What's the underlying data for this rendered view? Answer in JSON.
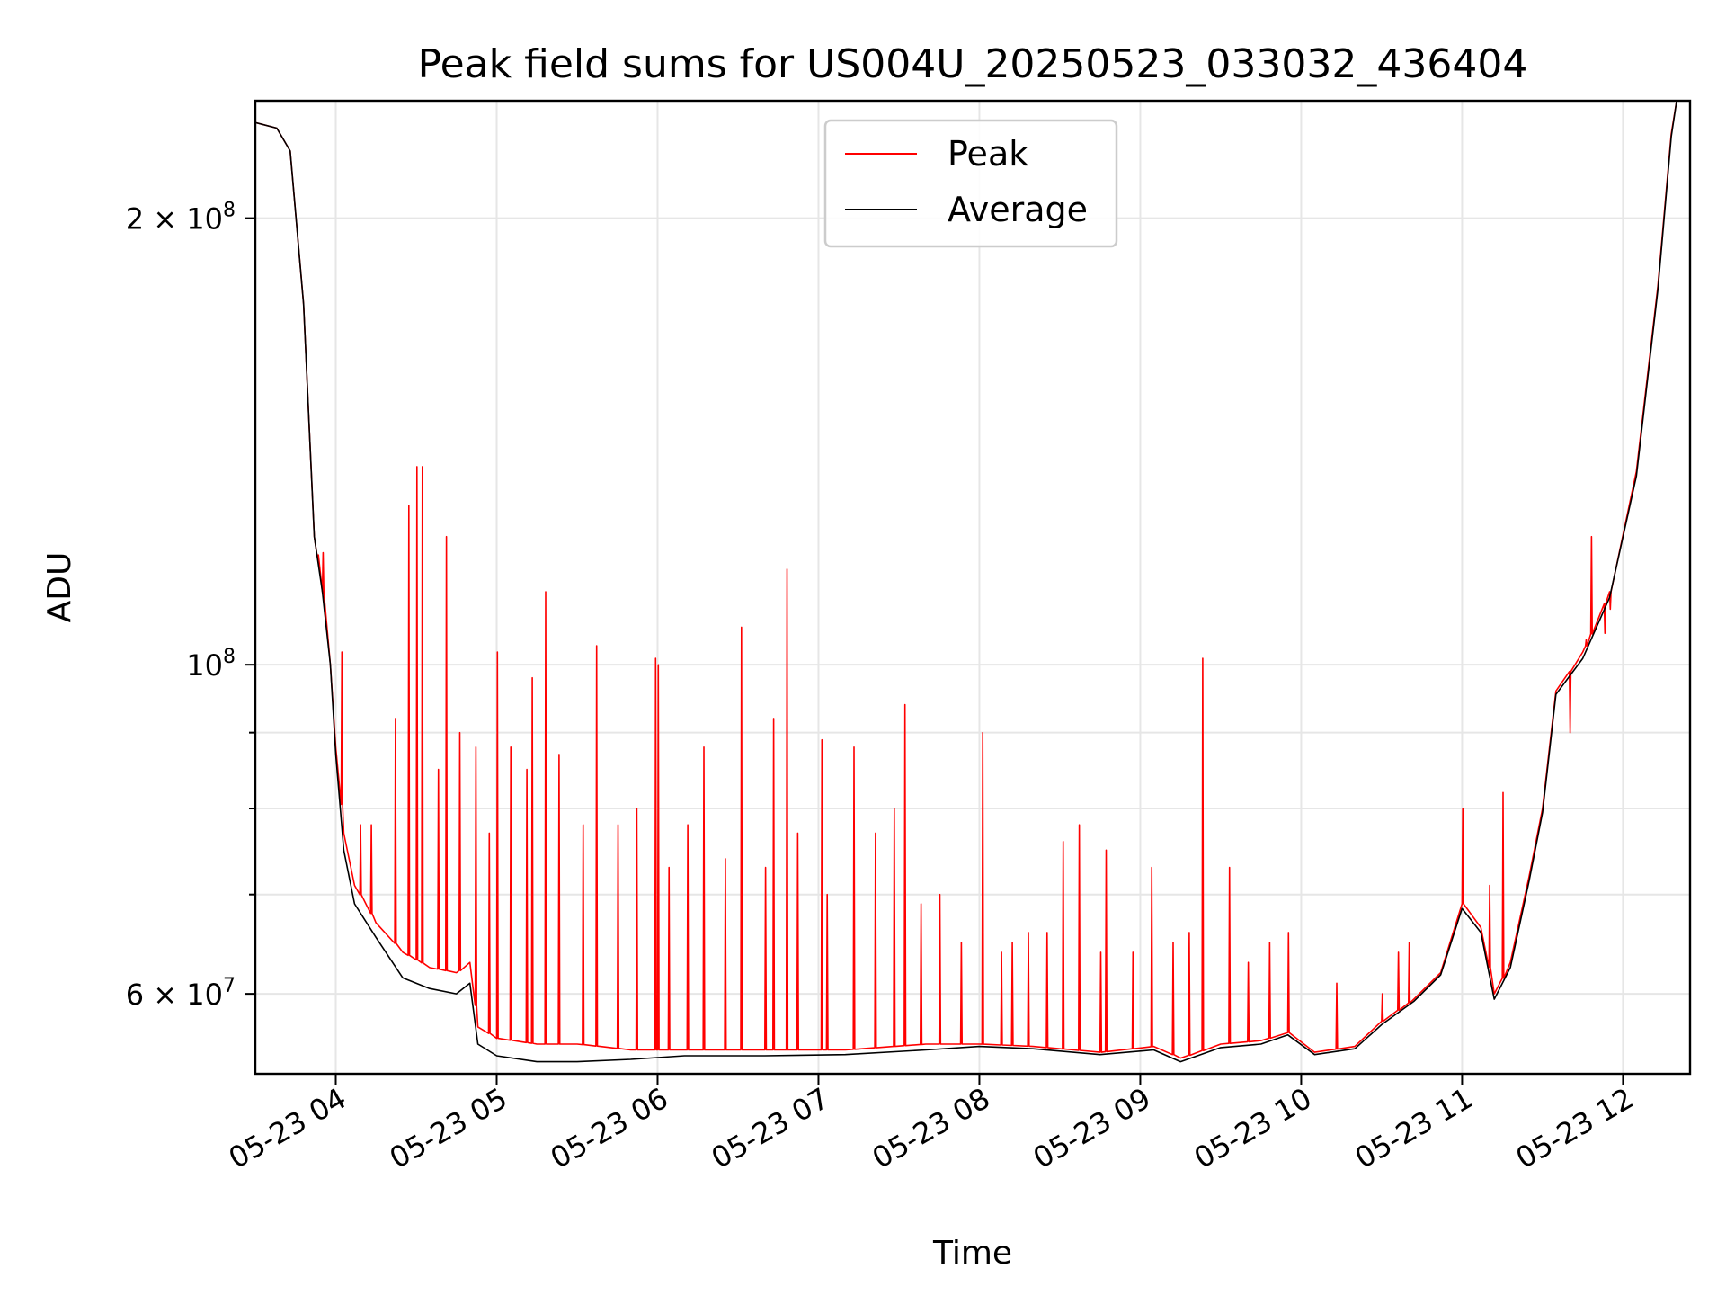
{
  "chart_data": {
    "type": "line",
    "title": "Peak field sums for US004U_20250523_033032_436404",
    "xlabel": "Time",
    "ylabel": "ADU",
    "y_scale": "log",
    "xlim": [
      "2025-05-23 03:30",
      "2025-05-23 12:25"
    ],
    "ylim": [
      53000000,
      240000000
    ],
    "x_ticks": [
      "05-23 04",
      "05-23 05",
      "05-23 06",
      "05-23 07",
      "05-23 08",
      "05-23 09",
      "05-23 10",
      "05-23 11",
      "05-23 12"
    ],
    "y_ticks_major": [
      {
        "value": 60000000,
        "label_base": "6 × 10",
        "label_exp": "7"
      },
      {
        "value": 100000000,
        "label_base": "10",
        "label_exp": "8"
      },
      {
        "value": 200000000,
        "label_base": "2 × 10",
        "label_exp": "8"
      }
    ],
    "y_ticks_minor": [
      70000000,
      80000000,
      90000000
    ],
    "grid": true,
    "legend_position": "top-center",
    "series": [
      {
        "name": "Peak",
        "color": "#ff0000",
        "points": [
          [
            "2025-05-23 03:30",
            232000000
          ],
          [
            "2025-05-23 03:38",
            230000000
          ],
          [
            "2025-05-23 03:43",
            222000000
          ],
          [
            "2025-05-23 03:48",
            175000000
          ],
          [
            "2025-05-23 03:52",
            122000000
          ],
          [
            "2025-05-23 03:55",
            112000000
          ],
          [
            "2025-05-23 03:58",
            100000000
          ],
          [
            "2025-05-23 04:00",
            88000000
          ],
          [
            "2025-05-23 04:03",
            77000000
          ],
          [
            "2025-05-23 04:07",
            71000000
          ],
          [
            "2025-05-23 04:15",
            67000000
          ],
          [
            "2025-05-23 04:25",
            64000000
          ],
          [
            "2025-05-23 04:35",
            62500000
          ],
          [
            "2025-05-23 04:45",
            62000000
          ],
          [
            "2025-05-23 04:50",
            63000000
          ],
          [
            "2025-05-23 04:53",
            57000000
          ],
          [
            "2025-05-23 05:00",
            56000000
          ],
          [
            "2025-05-23 05:15",
            55500000
          ],
          [
            "2025-05-23 05:30",
            55500000
          ],
          [
            "2025-05-23 05:50",
            55000000
          ],
          [
            "2025-05-23 06:10",
            55000000
          ],
          [
            "2025-05-23 06:40",
            55000000
          ],
          [
            "2025-05-23 07:10",
            55000000
          ],
          [
            "2025-05-23 07:40",
            55500000
          ],
          [
            "2025-05-23 08:00",
            55500000
          ],
          [
            "2025-05-23 08:20",
            55300000
          ],
          [
            "2025-05-23 08:45",
            54800000
          ],
          [
            "2025-05-23 09:05",
            55300000
          ],
          [
            "2025-05-23 09:15",
            54300000
          ],
          [
            "2025-05-23 09:30",
            55500000
          ],
          [
            "2025-05-23 09:45",
            55800000
          ],
          [
            "2025-05-23 09:55",
            56500000
          ],
          [
            "2025-05-23 10:05",
            54800000
          ],
          [
            "2025-05-23 10:20",
            55300000
          ],
          [
            "2025-05-23 10:30",
            57500000
          ],
          [
            "2025-05-23 10:42",
            59500000
          ],
          [
            "2025-05-23 10:52",
            62000000
          ],
          [
            "2025-05-23 11:00",
            69000000
          ],
          [
            "2025-05-23 11:07",
            66500000
          ],
          [
            "2025-05-23 11:12",
            60000000
          ],
          [
            "2025-05-23 11:18",
            63000000
          ],
          [
            "2025-05-23 11:25",
            72000000
          ],
          [
            "2025-05-23 11:30",
            80000000
          ],
          [
            "2025-05-23 11:35",
            96000000
          ],
          [
            "2025-05-23 11:45",
            102000000
          ],
          [
            "2025-05-23 11:55",
            112000000
          ],
          [
            "2025-05-23 12:05",
            135000000
          ],
          [
            "2025-05-23 12:13",
            180000000
          ],
          [
            "2025-05-23 12:18",
            228000000
          ],
          [
            "2025-05-23 12:20",
            240000000
          ]
        ],
        "spikes": [
          [
            "2025-05-23 03:53",
            118000000
          ],
          [
            "2025-05-23 03:55",
            119000000
          ],
          [
            "2025-05-23 04:02",
            102000000
          ],
          [
            "2025-05-23 04:09",
            78000000
          ],
          [
            "2025-05-23 04:13",
            78000000
          ],
          [
            "2025-05-23 04:22",
            92000000
          ],
          [
            "2025-05-23 04:27",
            128000000
          ],
          [
            "2025-05-23 04:30",
            136000000
          ],
          [
            "2025-05-23 04:32",
            136000000
          ],
          [
            "2025-05-23 04:38",
            85000000
          ],
          [
            "2025-05-23 04:41",
            122000000
          ],
          [
            "2025-05-23 04:46",
            90000000
          ],
          [
            "2025-05-23 04:52",
            88000000
          ],
          [
            "2025-05-23 04:57",
            77000000
          ],
          [
            "2025-05-23 05:00",
            102000000
          ],
          [
            "2025-05-23 05:05",
            88000000
          ],
          [
            "2025-05-23 05:11",
            85000000
          ],
          [
            "2025-05-23 05:13",
            98000000
          ],
          [
            "2025-05-23 05:18",
            112000000
          ],
          [
            "2025-05-23 05:23",
            87000000
          ],
          [
            "2025-05-23 05:32",
            78000000
          ],
          [
            "2025-05-23 05:37",
            103000000
          ],
          [
            "2025-05-23 05:45",
            78000000
          ],
          [
            "2025-05-23 05:52",
            80000000
          ],
          [
            "2025-05-23 05:59",
            101000000
          ],
          [
            "2025-05-23 06:00",
            100000000
          ],
          [
            "2025-05-23 06:04",
            73000000
          ],
          [
            "2025-05-23 06:11",
            78000000
          ],
          [
            "2025-05-23 06:17",
            88000000
          ],
          [
            "2025-05-23 06:25",
            74000000
          ],
          [
            "2025-05-23 06:31",
            106000000
          ],
          [
            "2025-05-23 06:40",
            73000000
          ],
          [
            "2025-05-23 06:43",
            92000000
          ],
          [
            "2025-05-23 06:48",
            116000000
          ],
          [
            "2025-05-23 06:52",
            77000000
          ],
          [
            "2025-05-23 07:01",
            89000000
          ],
          [
            "2025-05-23 07:03",
            70000000
          ],
          [
            "2025-05-23 07:13",
            88000000
          ],
          [
            "2025-05-23 07:21",
            77000000
          ],
          [
            "2025-05-23 07:28",
            80000000
          ],
          [
            "2025-05-23 07:32",
            94000000
          ],
          [
            "2025-05-23 07:38",
            69000000
          ],
          [
            "2025-05-23 07:45",
            70000000
          ],
          [
            "2025-05-23 07:53",
            65000000
          ],
          [
            "2025-05-23 08:01",
            90000000
          ],
          [
            "2025-05-23 08:08",
            64000000
          ],
          [
            "2025-05-23 08:12",
            65000000
          ],
          [
            "2025-05-23 08:18",
            66000000
          ],
          [
            "2025-05-23 08:25",
            66000000
          ],
          [
            "2025-05-23 08:31",
            76000000
          ],
          [
            "2025-05-23 08:37",
            78000000
          ],
          [
            "2025-05-23 08:45",
            64000000
          ],
          [
            "2025-05-23 08:47",
            75000000
          ],
          [
            "2025-05-23 08:57",
            64000000
          ],
          [
            "2025-05-23 09:04",
            73000000
          ],
          [
            "2025-05-23 09:12",
            65000000
          ],
          [
            "2025-05-23 09:18",
            66000000
          ],
          [
            "2025-05-23 09:23",
            101000000
          ],
          [
            "2025-05-23 09:33",
            73000000
          ],
          [
            "2025-05-23 09:40",
            63000000
          ],
          [
            "2025-05-23 09:48",
            65000000
          ],
          [
            "2025-05-23 09:55",
            66000000
          ],
          [
            "2025-05-23 10:13",
            61000000
          ],
          [
            "2025-05-23 10:30",
            60000000
          ],
          [
            "2025-05-23 10:36",
            64000000
          ],
          [
            "2025-05-23 10:40",
            65000000
          ],
          [
            "2025-05-23 11:00",
            80000000
          ],
          [
            "2025-05-23 11:10",
            71000000
          ],
          [
            "2025-05-23 11:15",
            82000000
          ],
          [
            "2025-05-23 11:40",
            90000000
          ],
          [
            "2025-05-23 11:46",
            104000000
          ],
          [
            "2025-05-23 11:48",
            122000000
          ],
          [
            "2025-05-23 11:53",
            105000000
          ],
          [
            "2025-05-23 11:55",
            109000000
          ]
        ]
      },
      {
        "name": "Average",
        "color": "#000000",
        "points": [
          [
            "2025-05-23 03:30",
            232000000
          ],
          [
            "2025-05-23 03:38",
            230000000
          ],
          [
            "2025-05-23 03:43",
            222000000
          ],
          [
            "2025-05-23 03:48",
            175000000
          ],
          [
            "2025-05-23 03:52",
            122000000
          ],
          [
            "2025-05-23 03:55",
            112000000
          ],
          [
            "2025-05-23 03:58",
            100000000
          ],
          [
            "2025-05-23 04:00",
            87000000
          ],
          [
            "2025-05-23 04:03",
            75000000
          ],
          [
            "2025-05-23 04:07",
            69000000
          ],
          [
            "2025-05-23 04:15",
            65500000
          ],
          [
            "2025-05-23 04:25",
            61500000
          ],
          [
            "2025-05-23 04:35",
            60500000
          ],
          [
            "2025-05-23 04:45",
            60000000
          ],
          [
            "2025-05-23 04:50",
            61000000
          ],
          [
            "2025-05-23 04:53",
            55500000
          ],
          [
            "2025-05-23 05:00",
            54500000
          ],
          [
            "2025-05-23 05:15",
            54000000
          ],
          [
            "2025-05-23 05:30",
            54000000
          ],
          [
            "2025-05-23 05:50",
            54200000
          ],
          [
            "2025-05-23 06:10",
            54500000
          ],
          [
            "2025-05-23 06:40",
            54500000
          ],
          [
            "2025-05-23 07:10",
            54600000
          ],
          [
            "2025-05-23 07:40",
            55000000
          ],
          [
            "2025-05-23 08:00",
            55300000
          ],
          [
            "2025-05-23 08:20",
            55100000
          ],
          [
            "2025-05-23 08:45",
            54600000
          ],
          [
            "2025-05-23 09:05",
            55000000
          ],
          [
            "2025-05-23 09:15",
            54000000
          ],
          [
            "2025-05-23 09:30",
            55200000
          ],
          [
            "2025-05-23 09:45",
            55500000
          ],
          [
            "2025-05-23 09:55",
            56300000
          ],
          [
            "2025-05-23 10:05",
            54600000
          ],
          [
            "2025-05-23 10:20",
            55100000
          ],
          [
            "2025-05-23 10:30",
            57200000
          ],
          [
            "2025-05-23 10:42",
            59300000
          ],
          [
            "2025-05-23 10:52",
            61800000
          ],
          [
            "2025-05-23 11:00",
            68500000
          ],
          [
            "2025-05-23 11:07",
            66000000
          ],
          [
            "2025-05-23 11:12",
            59500000
          ],
          [
            "2025-05-23 11:18",
            62500000
          ],
          [
            "2025-05-23 11:25",
            71500000
          ],
          [
            "2025-05-23 11:30",
            79500000
          ],
          [
            "2025-05-23 11:35",
            95500000
          ],
          [
            "2025-05-23 11:45",
            101000000
          ],
          [
            "2025-05-23 11:55",
            111000000
          ],
          [
            "2025-05-23 12:05",
            134000000
          ],
          [
            "2025-05-23 12:13",
            179000000
          ],
          [
            "2025-05-23 12:18",
            227000000
          ],
          [
            "2025-05-23 12:20",
            240000000
          ]
        ]
      }
    ]
  }
}
